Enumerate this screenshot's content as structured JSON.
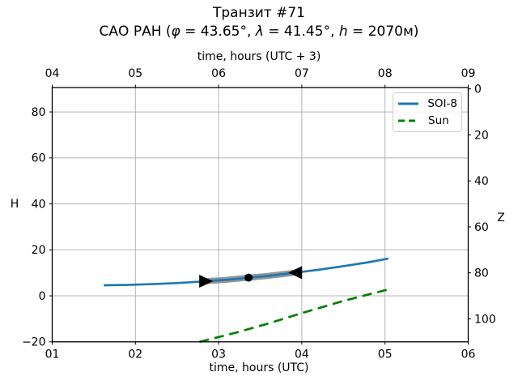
{
  "chart_data": {
    "type": "line",
    "title_line1": "Транзит #71",
    "subtitle": {
      "p1": "САО РАН (",
      "phi": "φ",
      "p2": " = 43.65°, ",
      "lam": "λ",
      "p3": " = 41.45°, ",
      "h": "h",
      "p4": " = 2070м)"
    },
    "xlabel_top": "time, hours (UTC + 3)",
    "xlabel_bottom": "time, hours (UTC)",
    "ylabel_left": "H",
    "ylabel_right": "Z",
    "xlim": [
      1,
      6
    ],
    "ylim": [
      -20,
      90.6
    ],
    "grid": true,
    "x_tick_values": [
      1,
      2,
      3,
      4,
      5,
      6
    ],
    "x_tick_labels_bottom": [
      "01",
      "02",
      "03",
      "04",
      "05",
      "06"
    ],
    "x_tick_labels_top": [
      "04",
      "05",
      "06",
      "07",
      "08",
      "09"
    ],
    "y_tick_values_left": [
      -20,
      0,
      20,
      40,
      60,
      80
    ],
    "y_tick_labels_left": [
      "−20",
      "0",
      "20",
      "40",
      "60",
      "80"
    ],
    "z_tick_values_right": [
      0,
      20,
      40,
      60,
      80,
      100
    ],
    "z_tick_labels_right": [
      "0",
      "20",
      "40",
      "60",
      "80",
      "100"
    ],
    "colors": {
      "soi8": "#1f77b4",
      "sun": "#008000",
      "band": "#8a8a8a",
      "marker": "#000000",
      "grid": "#b3b3b3",
      "spine": "#000000"
    },
    "series": [
      {
        "name": "SOI-8",
        "style": "solid",
        "color": "#1f77b4",
        "points": [
          [
            1.62,
            4.6
          ],
          [
            1.9,
            4.75
          ],
          [
            2.2,
            5.1
          ],
          [
            2.5,
            5.55
          ],
          [
            2.84,
            6.35
          ],
          [
            3.1,
            7.0
          ],
          [
            3.36,
            7.9
          ],
          [
            3.6,
            8.7
          ],
          [
            3.93,
            10.1
          ],
          [
            4.2,
            11.35
          ],
          [
            4.5,
            12.9
          ],
          [
            4.8,
            14.6
          ],
          [
            5.04,
            16.2
          ]
        ]
      },
      {
        "name": "Sun",
        "style": "dashed",
        "color": "#008000",
        "points": [
          [
            2.77,
            -20
          ],
          [
            3.2,
            -16.1
          ],
          [
            3.6,
            -12.0
          ],
          [
            4.0,
            -7.5
          ],
          [
            4.5,
            -2.2
          ],
          [
            5.04,
            2.8
          ]
        ]
      }
    ],
    "transit_band": {
      "color": "#8a8a8a",
      "points": [
        [
          2.84,
          6.35
        ],
        [
          3.1,
          7.0
        ],
        [
          3.36,
          7.9
        ],
        [
          3.6,
          8.7
        ],
        [
          3.93,
          10.1
        ]
      ]
    },
    "markers": [
      {
        "shape": "triangle-right",
        "t": 2.84,
        "h": 6.35
      },
      {
        "shape": "circle",
        "t": 3.36,
        "h": 7.9
      },
      {
        "shape": "triangle-left",
        "t": 3.93,
        "h": 10.1
      }
    ],
    "legend_position": "upper right"
  }
}
